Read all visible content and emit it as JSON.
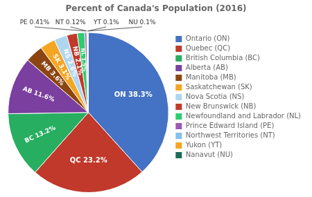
{
  "chart_data": {
    "type": "pie",
    "title": "Percent of Canada's Population (2016)",
    "categories": [
      "Ontario (ON)",
      "Quebec (QC)",
      "British Columbia (BC)",
      "Alberta (AB)",
      "Manitoba (MB)",
      "Saskatchewan (SK)",
      "Nova Scotia (NS)",
      "New Brunswick (NB)",
      "Newfoundland and Labrador (NL)",
      "Prince Edward Island (PE)",
      "Northwest Territories (NT)",
      "Yukon (YT)",
      "Nanavut (NU)"
    ],
    "values": [
      38.3,
      23.2,
      13.2,
      11.6,
      3.6,
      3.1,
      2.6,
      2.1,
      1.5,
      0.41,
      0.12,
      0.1,
      0.1
    ],
    "value_labels": [
      "ON 38.3%",
      "QC 23.2%",
      "BC 13.2%",
      "AB 11.6%",
      "MB 3.6%",
      "SK 3.1%",
      "NS 2.6%",
      "NB 2.1%",
      "NL 1.5%",
      "PE 0.41%",
      "NT 0.12%",
      "YT 0.1%",
      "NU 0.1%"
    ],
    "colors": [
      "#4472C4",
      "#C0392B",
      "#27AE60",
      "#7B3FA0",
      "#8B4513",
      "#F4A623",
      "#AED6F1",
      "#C0392B",
      "#2ECC71",
      "#9B59B6",
      "#85C1E9",
      "#F4A623",
      "#1A6B5A"
    ],
    "data_labels": true,
    "legend": "right"
  }
}
